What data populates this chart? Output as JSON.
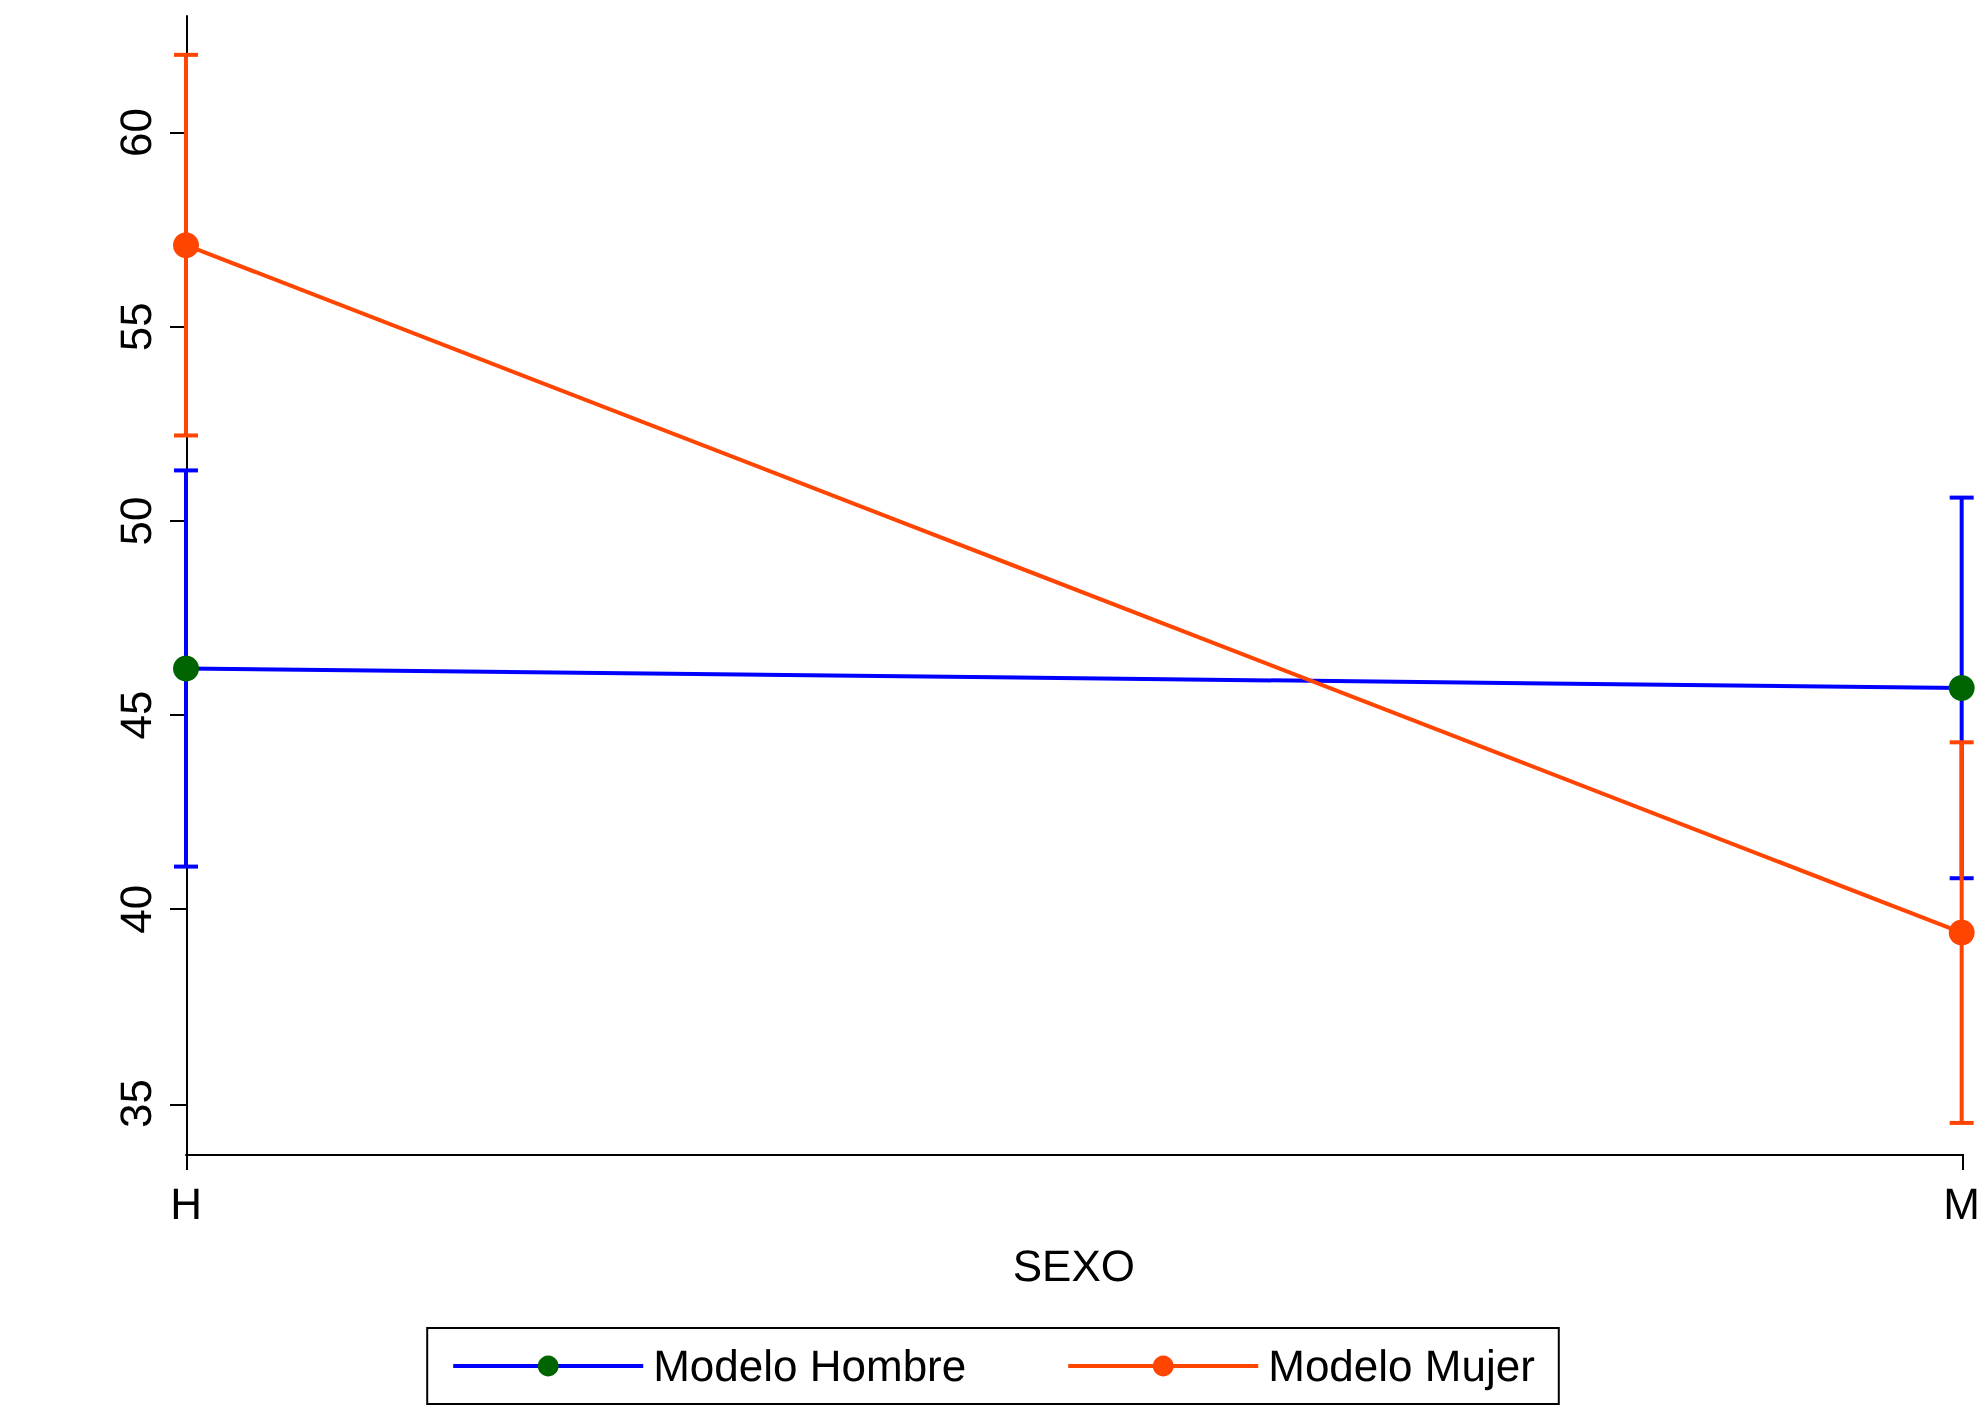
{
  "chart_data": {
    "type": "line",
    "xlabel": "SEXO",
    "categories": [
      "H",
      "M"
    ],
    "series": [
      {
        "name": "Modelo Hombre",
        "color": "#0000ff",
        "colors": [
          "#006400",
          "#006400"
        ],
        "values": [
          46.2,
          45.7
        ],
        "errors": [
          [
            41.1,
            51.3
          ],
          [
            40.8,
            50.6
          ]
        ]
      },
      {
        "name": "Modelo Mujer",
        "color": "#ff4500",
        "colors": [
          "#ff4500",
          "#ff4500"
        ],
        "values": [
          57.1,
          39.4
        ],
        "errors": [
          [
            52.2,
            62
          ],
          [
            34.5,
            44.3
          ]
        ]
      }
    ],
    "ylim": [
      33.7,
      63
    ],
    "yticks": [
      35,
      40,
      45,
      50,
      55,
      60
    ],
    "grid": false,
    "legend": "bottom",
    "marker": "circle",
    "line_style": "solid"
  }
}
